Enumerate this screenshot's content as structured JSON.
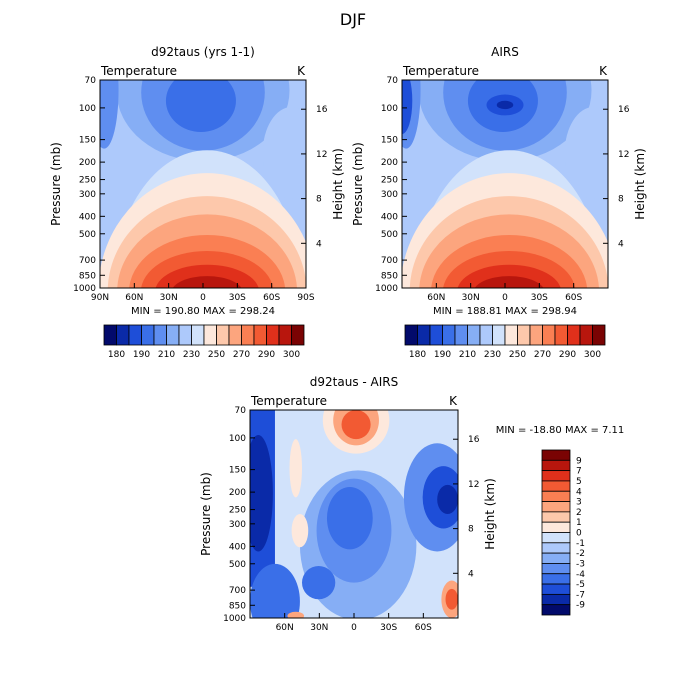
{
  "page_title": "DJF",
  "chart_data": [
    {
      "type": "heatmap",
      "title": "d92taus (yrs 1-1)",
      "subtitle_left": "Temperature",
      "subtitle_right": "K",
      "xlabel": "",
      "ylabel": "Pressure (mb)",
      "ylabel_right": "Height (km)",
      "x_ticks": [
        "90N",
        "60N",
        "30N",
        "0",
        "30S",
        "60S",
        "90S"
      ],
      "y_ticks": [
        "70",
        "100",
        "150",
        "200",
        "250",
        "300",
        "400",
        "500",
        "700",
        "850",
        "1000"
      ],
      "y_right_ticks": [
        "16",
        "12",
        "8",
        "4"
      ],
      "min_max": "MIN = 190.80   MAX = 298.24",
      "colorbar_labels": [
        "180",
        "190",
        "210",
        "230",
        "250",
        "270",
        "290",
        "300"
      ],
      "colorbar_colors": [
        "#020a6b",
        "#0a2aa8",
        "#1e4ed8",
        "#3a6fe8",
        "#5f8ef0",
        "#86aef5",
        "#adc9fb",
        "#d1e2fb",
        "#fde8dc",
        "#fdc8ab",
        "#fca57e",
        "#fa7f53",
        "#f25a33",
        "#e0301b",
        "#b8160d",
        "#7a0303"
      ]
    },
    {
      "type": "heatmap",
      "title": "AIRS",
      "subtitle_left": "Temperature",
      "subtitle_right": "K",
      "xlabel": "",
      "ylabel": "Pressure (mb)",
      "ylabel_right": "Height (km)",
      "x_ticks": [
        "60N",
        "30N",
        "0",
        "30S",
        "60S"
      ],
      "y_ticks": [
        "70",
        "100",
        "150",
        "200",
        "250",
        "300",
        "400",
        "500",
        "700",
        "850",
        "1000"
      ],
      "y_right_ticks": [
        "16",
        "12",
        "8",
        "4"
      ],
      "min_max": "MIN = 188.81   MAX = 298.94",
      "colorbar_labels": [
        "180",
        "190",
        "210",
        "230",
        "250",
        "270",
        "290",
        "300"
      ],
      "colorbar_colors": [
        "#020a6b",
        "#0a2aa8",
        "#1e4ed8",
        "#3a6fe8",
        "#5f8ef0",
        "#86aef5",
        "#adc9fb",
        "#d1e2fb",
        "#fde8dc",
        "#fdc8ab",
        "#fca57e",
        "#fa7f53",
        "#f25a33",
        "#e0301b",
        "#b8160d",
        "#7a0303"
      ]
    },
    {
      "type": "heatmap",
      "title": "d92taus - AIRS",
      "subtitle_left": "Temperature",
      "subtitle_right": "K",
      "xlabel": "",
      "ylabel": "Pressure (mb)",
      "ylabel_right": "Height (km)",
      "x_ticks": [
        "60N",
        "30N",
        "0",
        "30S",
        "60S"
      ],
      "y_ticks": [
        "70",
        "100",
        "150",
        "200",
        "250",
        "300",
        "400",
        "500",
        "700",
        "850",
        "1000"
      ],
      "y_right_ticks": [
        "16",
        "12",
        "8",
        "4"
      ],
      "min_max": "MIN = -18.80   MAX =    7.11",
      "colorbar_labels": [
        "9",
        "7",
        "5",
        "4",
        "3",
        "2",
        "1",
        "0",
        "-1",
        "-2",
        "-3",
        "-4",
        "-5",
        "-7",
        "-9"
      ],
      "colorbar_colors": [
        "#7a0303",
        "#b8160d",
        "#e0301b",
        "#f25a33",
        "#fa7f53",
        "#fca57e",
        "#fdc8ab",
        "#fde8dc",
        "#d1e2fb",
        "#adc9fb",
        "#86aef5",
        "#5f8ef0",
        "#3a6fe8",
        "#1e4ed8",
        "#0a2aa8",
        "#020a6b"
      ]
    }
  ]
}
